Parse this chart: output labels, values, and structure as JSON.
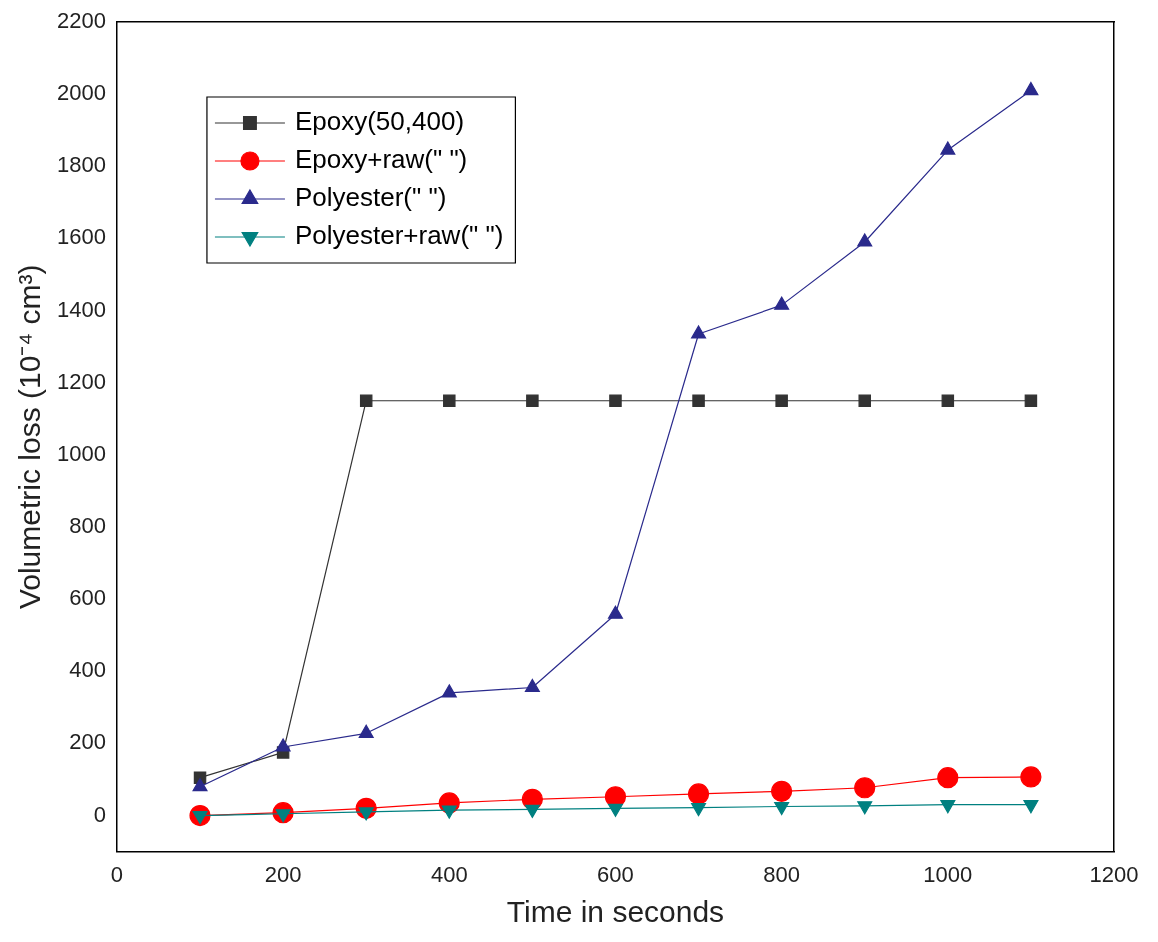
{
  "chart_data": {
    "type": "line",
    "xlabel": "Time in seconds",
    "ylabel": "Volumetric loss (10⁻⁴ cm³)",
    "x": [
      100,
      200,
      300,
      400,
      500,
      600,
      700,
      800,
      900,
      1000,
      1100
    ],
    "series": [
      {
        "name": "Epoxy(50,400)",
        "color": "#333333",
        "marker": "square",
        "values": [
          105,
          175,
          1150,
          1150,
          1150,
          1150,
          1150,
          1150,
          1150,
          1150,
          1150
        ]
      },
      {
        "name": "Epoxy+raw(\" \")",
        "color": "#ff0000",
        "marker": "circle",
        "values": [
          0,
          8,
          20,
          35,
          45,
          52,
          60,
          67,
          77,
          105,
          107
        ]
      },
      {
        "name": "Polyester(\" \")",
        "color": "#2a2a8c",
        "marker": "triangle",
        "values": [
          80,
          190,
          228,
          340,
          355,
          558,
          1335,
          1415,
          1590,
          1845,
          2010
        ]
      },
      {
        "name": "Polyester+raw(\" \")",
        "color": "#008080",
        "marker": "triangle-down",
        "values": [
          0,
          5,
          10,
          15,
          17,
          20,
          22,
          25,
          27,
          30,
          30
        ]
      }
    ],
    "xlim": [
      0,
      1200
    ],
    "xticks": [
      0,
      200,
      400,
      600,
      800,
      1000,
      1200
    ],
    "ylim": [
      -100,
      2200
    ],
    "yticks": [
      0,
      200,
      400,
      600,
      800,
      1000,
      1200,
      1400,
      1600,
      1800,
      2000,
      2200
    ],
    "grid": false,
    "legend": "top left",
    "line_style": "solid"
  }
}
